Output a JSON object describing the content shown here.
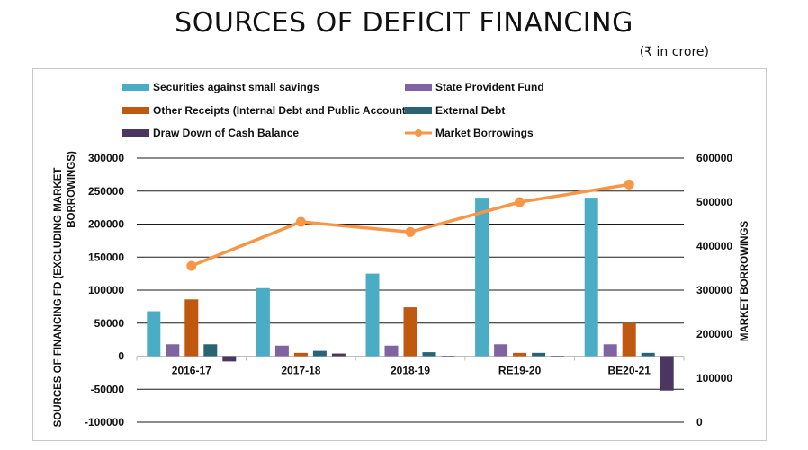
{
  "title": "SOURCES OF DEFICIT FINANCING",
  "unit_note": "(₹ in crore)",
  "chart_data": {
    "type": "bar",
    "categories": [
      "2016-17",
      "2017-18",
      "2018-19",
      "RE19-20",
      "BE20-21"
    ],
    "series": [
      {
        "name": "Securities against small savings",
        "type": "bar",
        "axis": "left",
        "color": "#4bacc6",
        "values": [
          68000,
          103000,
          125000,
          240000,
          240000
        ]
      },
      {
        "name": "State Provident Fund",
        "type": "bar",
        "axis": "left",
        "color": "#8064a2",
        "values": [
          18000,
          16000,
          16000,
          18000,
          18000
        ]
      },
      {
        "name": "Other Receipts (Internal Debt and Public Account",
        "type": "bar",
        "axis": "left",
        "color": "#c0580f",
        "values": [
          86000,
          5000,
          74000,
          5000,
          50000
        ]
      },
      {
        "name": "External Debt",
        "type": "bar",
        "axis": "left",
        "color": "#2a6474",
        "values": [
          18000,
          8000,
          6000,
          5000,
          5000
        ]
      },
      {
        "name": "Draw Down of Cash Balance",
        "type": "bar",
        "axis": "left",
        "color": "#4a3660",
        "values": [
          -8000,
          4000,
          -1000,
          0,
          -52000
        ]
      },
      {
        "name": "Market Borrowings",
        "type": "line",
        "axis": "right",
        "color": "#f79646",
        "values": [
          355000,
          455000,
          432000,
          500000,
          540000
        ]
      }
    ],
    "ylabel": "SOURCES OF  FINANCING FD (EXCLUDING MARKET BORROWINGS)",
    "y2label": "MARKET BORROWINGS",
    "ylim": [
      -100000,
      300000
    ],
    "y2lim": [
      0,
      600000
    ],
    "y_ticks": [
      "300000",
      "250000",
      "200000",
      "150000",
      "100000",
      "50000",
      "0",
      "-50000",
      "-100000"
    ],
    "y2_ticks": [
      "600000",
      "500000",
      "400000",
      "300000",
      "200000",
      "100000",
      "0"
    ],
    "grid": true,
    "legend_position": "top"
  }
}
